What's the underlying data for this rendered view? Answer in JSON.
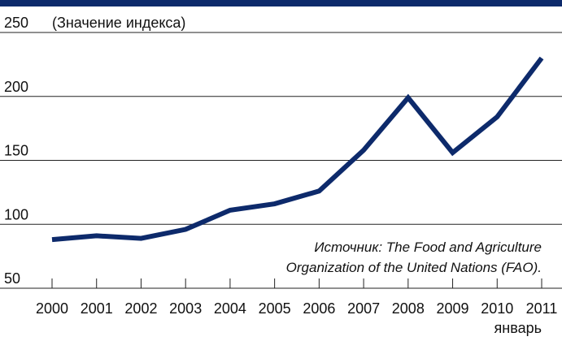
{
  "chart_data": {
    "type": "line",
    "y_label": "(Значение индекса)",
    "categories": [
      "2000",
      "2001",
      "2002",
      "2003",
      "2004",
      "2005",
      "2006",
      "2007",
      "2008",
      "2009",
      "2010",
      "2011"
    ],
    "x_note": "январь",
    "series": [
      {
        "color": "#0d2a6b",
        "values": [
          88,
          91,
          89,
          96,
          111,
          116,
          126,
          158,
          199,
          156,
          184,
          230
        ]
      }
    ],
    "ylim": [
      50,
      250
    ],
    "yticks": [
      50,
      100,
      150,
      200,
      250
    ],
    "grid": true,
    "source": [
      "Источник: The Food and Agriculture",
      "Organization of the United Nations (FAO)."
    ]
  }
}
